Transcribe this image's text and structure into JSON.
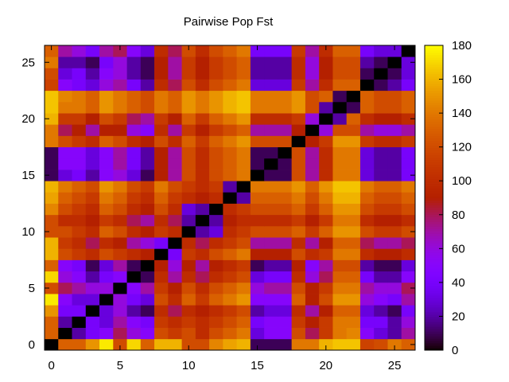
{
  "chart_data": {
    "type": "heatmap",
    "title": "Pairwise Pop Fst",
    "xlabel": "",
    "ylabel": "",
    "x_ticks": [
      0,
      5,
      10,
      15,
      20,
      25
    ],
    "y_ticks": [
      0,
      5,
      10,
      15,
      20,
      25
    ],
    "xlim": [
      -0.5,
      26.5
    ],
    "ylim": [
      -0.5,
      26.5
    ],
    "colorbar": {
      "min": 0,
      "max": 180,
      "ticks": [
        0,
        20,
        40,
        60,
        80,
        100,
        120,
        140,
        160,
        180
      ],
      "palette": "gnuplot-rgbformulae-7-5-15"
    },
    "grid": false,
    "size": 27,
    "values": [
      [
        0,
        130,
        130,
        150,
        175,
        120,
        170,
        130,
        160,
        160,
        120,
        120,
        145,
        155,
        160,
        10,
        10,
        10,
        140,
        140,
        160,
        165,
        165,
        115,
        120,
        140,
        130
      ],
      [
        130,
        0,
        20,
        40,
        50,
        80,
        60,
        50,
        120,
        110,
        120,
        100,
        120,
        130,
        140,
        30,
        50,
        50,
        120,
        80,
        110,
        140,
        145,
        50,
        30,
        20,
        70
      ],
      [
        130,
        20,
        0,
        40,
        30,
        70,
        50,
        40,
        110,
        100,
        110,
        100,
        110,
        120,
        130,
        40,
        50,
        50,
        110,
        90,
        110,
        140,
        140,
        40,
        40,
        20,
        60
      ],
      [
        150,
        40,
        40,
        0,
        30,
        60,
        20,
        10,
        100,
        80,
        100,
        90,
        100,
        110,
        120,
        20,
        30,
        30,
        100,
        70,
        90,
        130,
        130,
        30,
        20,
        10,
        40
      ],
      [
        175,
        50,
        30,
        30,
        0,
        60,
        40,
        30,
        120,
        100,
        130,
        110,
        130,
        140,
        150,
        50,
        50,
        50,
        130,
        90,
        120,
        150,
        150,
        60,
        50,
        40,
        70
      ],
      [
        120,
        80,
        70,
        60,
        60,
        0,
        50,
        70,
        110,
        90,
        120,
        100,
        120,
        130,
        140,
        60,
        70,
        70,
        120,
        90,
        110,
        140,
        140,
        70,
        60,
        60,
        80
      ],
      [
        170,
        60,
        50,
        20,
        40,
        50,
        0,
        10,
        100,
        70,
        100,
        80,
        100,
        110,
        120,
        30,
        40,
        40,
        100,
        60,
        80,
        130,
        130,
        40,
        20,
        20,
        50
      ],
      [
        130,
        50,
        40,
        10,
        30,
        70,
        10,
        0,
        90,
        60,
        90,
        70,
        90,
        100,
        110,
        10,
        20,
        20,
        90,
        50,
        70,
        120,
        120,
        20,
        10,
        10,
        30
      ],
      [
        160,
        120,
        110,
        100,
        120,
        110,
        100,
        90,
        0,
        40,
        110,
        100,
        120,
        130,
        140,
        90,
        90,
        90,
        120,
        100,
        110,
        140,
        140,
        100,
        90,
        90,
        100
      ],
      [
        160,
        110,
        100,
        80,
        100,
        90,
        70,
        60,
        40,
        0,
        100,
        80,
        100,
        110,
        120,
        70,
        70,
        70,
        100,
        70,
        90,
        130,
        130,
        80,
        70,
        70,
        80
      ],
      [
        120,
        120,
        110,
        100,
        130,
        120,
        100,
        90,
        110,
        100,
        0,
        20,
        30,
        100,
        110,
        120,
        120,
        120,
        130,
        110,
        130,
        150,
        150,
        120,
        110,
        110,
        120
      ],
      [
        120,
        100,
        100,
        90,
        110,
        100,
        80,
        70,
        100,
        80,
        20,
        0,
        20,
        90,
        100,
        100,
        100,
        100,
        110,
        90,
        110,
        140,
        140,
        100,
        90,
        90,
        100
      ],
      [
        145,
        120,
        110,
        100,
        130,
        120,
        100,
        90,
        120,
        100,
        30,
        20,
        0,
        100,
        110,
        120,
        120,
        120,
        130,
        110,
        130,
        150,
        150,
        120,
        110,
        110,
        120
      ],
      [
        155,
        130,
        120,
        110,
        140,
        130,
        110,
        100,
        130,
        110,
        100,
        90,
        100,
        0,
        20,
        130,
        130,
        130,
        140,
        120,
        140,
        160,
        160,
        130,
        120,
        120,
        130
      ],
      [
        160,
        140,
        130,
        120,
        150,
        140,
        120,
        110,
        140,
        120,
        110,
        100,
        110,
        20,
        0,
        140,
        140,
        140,
        150,
        130,
        150,
        165,
        165,
        140,
        130,
        130,
        140
      ],
      [
        10,
        30,
        40,
        20,
        50,
        60,
        30,
        10,
        90,
        70,
        120,
        100,
        120,
        130,
        140,
        0,
        10,
        10,
        120,
        70,
        100,
        140,
        140,
        30,
        20,
        20,
        40
      ],
      [
        10,
        50,
        50,
        30,
        50,
        70,
        40,
        20,
        90,
        70,
        120,
        100,
        120,
        130,
        140,
        10,
        0,
        10,
        120,
        70,
        100,
        140,
        140,
        30,
        20,
        20,
        40
      ],
      [
        10,
        50,
        50,
        30,
        50,
        70,
        40,
        20,
        90,
        70,
        120,
        100,
        120,
        130,
        140,
        10,
        10,
        0,
        120,
        70,
        100,
        140,
        140,
        30,
        20,
        20,
        40
      ],
      [
        140,
        120,
        110,
        100,
        130,
        120,
        100,
        90,
        120,
        100,
        130,
        110,
        130,
        140,
        150,
        120,
        120,
        120,
        0,
        90,
        110,
        150,
        150,
        110,
        100,
        100,
        110
      ],
      [
        140,
        80,
        90,
        70,
        90,
        90,
        60,
        50,
        100,
        70,
        110,
        90,
        110,
        120,
        130,
        70,
        70,
        70,
        90,
        0,
        60,
        120,
        120,
        70,
        60,
        60,
        70
      ],
      [
        160,
        110,
        110,
        90,
        120,
        110,
        80,
        70,
        110,
        90,
        130,
        110,
        130,
        140,
        150,
        100,
        100,
        100,
        110,
        60,
        0,
        20,
        130,
        100,
        90,
        90,
        100
      ],
      [
        165,
        140,
        140,
        130,
        150,
        140,
        130,
        120,
        140,
        130,
        150,
        140,
        150,
        160,
        165,
        140,
        140,
        140,
        150,
        120,
        20,
        0,
        10,
        130,
        120,
        120,
        130
      ],
      [
        165,
        145,
        140,
        130,
        150,
        140,
        130,
        120,
        140,
        130,
        150,
        140,
        150,
        160,
        165,
        140,
        140,
        140,
        150,
        120,
        130,
        10,
        0,
        130,
        120,
        120,
        130
      ],
      [
        115,
        50,
        40,
        30,
        60,
        70,
        40,
        20,
        100,
        80,
        120,
        100,
        120,
        130,
        140,
        30,
        30,
        30,
        110,
        70,
        100,
        130,
        130,
        0,
        10,
        20,
        40
      ],
      [
        120,
        30,
        40,
        20,
        50,
        60,
        20,
        10,
        90,
        70,
        110,
        90,
        110,
        120,
        130,
        20,
        20,
        20,
        100,
        60,
        90,
        120,
        120,
        10,
        0,
        10,
        30
      ],
      [
        140,
        20,
        20,
        10,
        40,
        60,
        20,
        10,
        90,
        70,
        110,
        90,
        110,
        120,
        130,
        20,
        20,
        20,
        100,
        60,
        90,
        120,
        120,
        20,
        10,
        0,
        30
      ],
      [
        130,
        70,
        60,
        40,
        70,
        80,
        50,
        30,
        100,
        80,
        120,
        100,
        120,
        130,
        140,
        40,
        40,
        40,
        110,
        70,
        100,
        130,
        130,
        40,
        30,
        30,
        0
      ]
    ]
  }
}
